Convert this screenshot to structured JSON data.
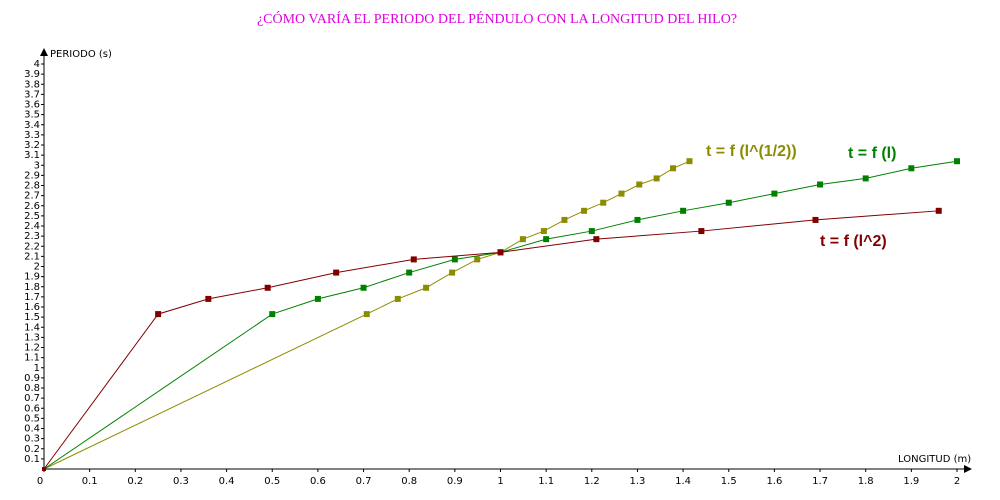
{
  "chart_data": {
    "type": "line",
    "title": "¿CÓMO VARÍA EL PERIODO DEL PÉNDULO CON LA LONGITUD DEL HILO?",
    "y_label": "PERIODO (s)",
    "x_label": "LONGITUD (m)",
    "xlim": [
      0,
      2
    ],
    "ylim": [
      0,
      4
    ],
    "xticks": [
      0,
      0.1,
      0.2,
      0.3,
      0.4,
      0.5,
      0.6,
      0.7,
      0.8,
      0.9,
      1,
      1.1,
      1.2,
      1.3,
      1.4,
      1.5,
      1.6,
      1.7,
      1.8,
      1.9,
      2
    ],
    "yticks": [
      0.1,
      0.2,
      0.3,
      0.4,
      0.5,
      0.6,
      0.7,
      0.8,
      0.9,
      1,
      1.1,
      1.2,
      1.3,
      1.4,
      1.5,
      1.6,
      1.7,
      1.8,
      1.9,
      2,
      2.1,
      2.2,
      2.3,
      2.4,
      2.5,
      2.6,
      2.7,
      2.8,
      2.9,
      3,
      3.1,
      3.2,
      3.3,
      3.4,
      3.5,
      3.6,
      3.7,
      3.8,
      3.9,
      4
    ],
    "series": [
      {
        "name": "t = f (l^(1/2))",
        "color": "#8c8c00",
        "x": [
          0,
          0.707,
          0.775,
          0.837,
          0.894,
          0.949,
          1,
          1.049,
          1.095,
          1.14,
          1.183,
          1.225,
          1.265,
          1.304,
          1.342,
          1.378,
          1.414
        ],
        "values": [
          0,
          1.53,
          1.68,
          1.79,
          1.94,
          2.07,
          2.14,
          2.27,
          2.35,
          2.46,
          2.55,
          2.63,
          2.72,
          2.81,
          2.87,
          2.97,
          3.04
        ]
      },
      {
        "name": "t = f (l)",
        "color": "#008000",
        "x": [
          0,
          0.5,
          0.6,
          0.7,
          0.8,
          0.9,
          1,
          1.1,
          1.2,
          1.3,
          1.4,
          1.5,
          1.6,
          1.7,
          1.8,
          1.9,
          2
        ],
        "values": [
          0,
          1.53,
          1.68,
          1.79,
          1.94,
          2.07,
          2.14,
          2.27,
          2.35,
          2.46,
          2.55,
          2.63,
          2.72,
          2.81,
          2.87,
          2.97,
          3.04
        ]
      },
      {
        "name": "t = f (l^2)",
        "color": "#800000",
        "x": [
          0,
          0.25,
          0.36,
          0.49,
          0.64,
          0.81,
          1,
          1.21,
          1.44,
          1.69,
          1.96
        ],
        "values": [
          0,
          1.53,
          1.68,
          1.79,
          1.94,
          2.07,
          2.14,
          2.27,
          2.35,
          2.46,
          2.55
        ]
      }
    ]
  }
}
